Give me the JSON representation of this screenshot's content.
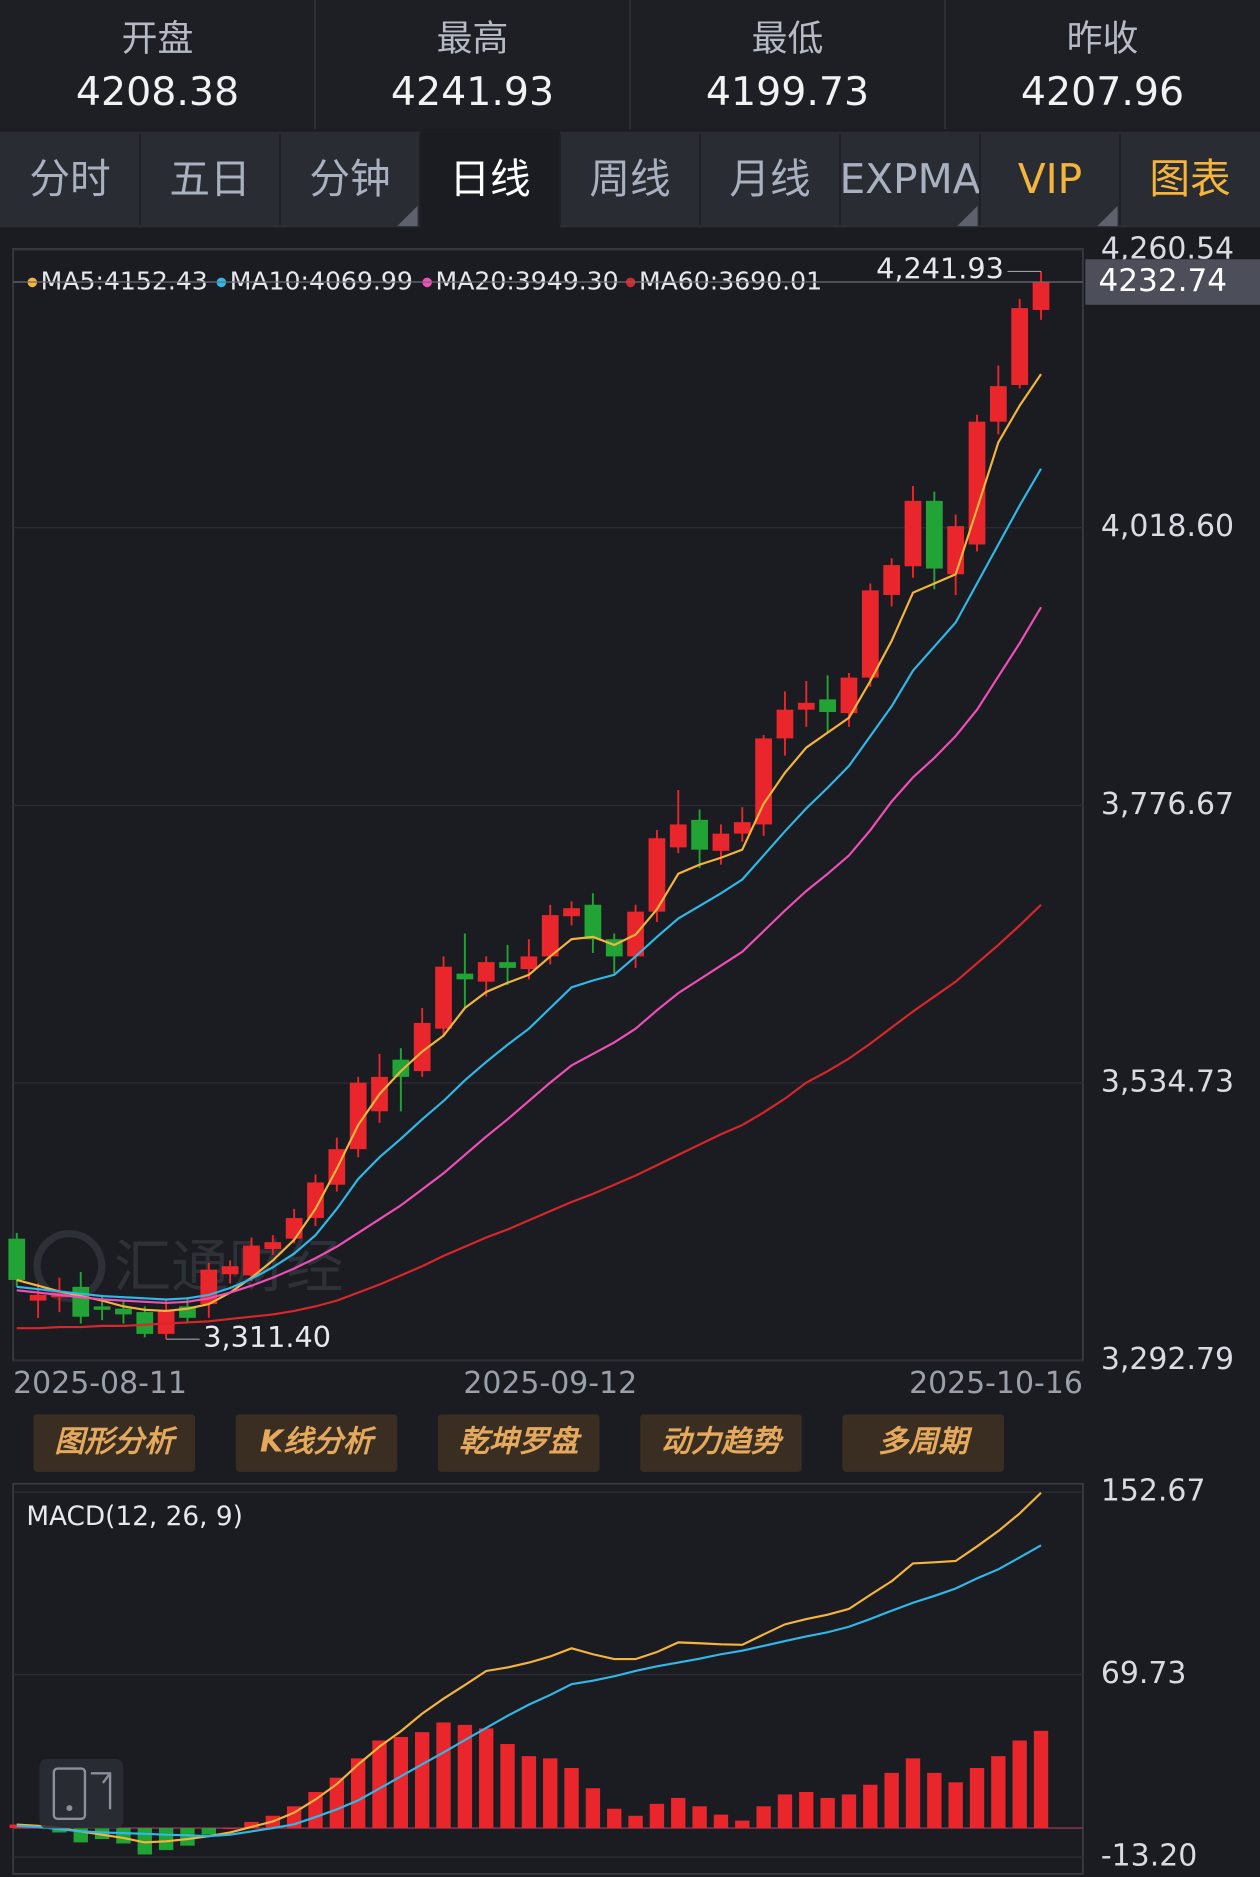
{
  "header": {
    "stats": [
      {
        "label": "开盘",
        "value": 4208.38
      },
      {
        "label": "最高",
        "value": 4241.93
      },
      {
        "label": "最低",
        "value": 4199.73
      },
      {
        "label": "昨收",
        "value": 4207.96
      }
    ]
  },
  "tabs": {
    "items": [
      {
        "label": "分时"
      },
      {
        "label": "五日"
      },
      {
        "label": "分钟",
        "menu": true
      },
      {
        "label": "日线",
        "active": true
      },
      {
        "label": "周线"
      },
      {
        "label": "月线"
      },
      {
        "label": "EXPMA",
        "menu": true
      },
      {
        "label": "VIP",
        "color": "#f5b53d",
        "menu": true
      },
      {
        "label": "图表",
        "color": "#f5b53d"
      }
    ]
  },
  "buttons": [
    "图形分析",
    "K线分析",
    "乾坤罗盘",
    "动力趋势",
    "多周期"
  ],
  "chart_data": [
    {
      "type": "candlestick",
      "categories": [
        "2025-08-11",
        null,
        null,
        null,
        null,
        null,
        null,
        null,
        null,
        null,
        null,
        null,
        null,
        null,
        null,
        null,
        null,
        null,
        null,
        null,
        null,
        null,
        null,
        null,
        null,
        "2025-09-12",
        null,
        null,
        null,
        null,
        null,
        null,
        null,
        null,
        null,
        null,
        null,
        null,
        null,
        null,
        null,
        null,
        null,
        null,
        null,
        null,
        null,
        null,
        "2025-10-16"
      ],
      "open": [
        3399,
        3345,
        3348,
        3357,
        3340,
        3338,
        3335,
        3316,
        3340,
        3342,
        3368,
        3367,
        3390,
        3399,
        3417,
        3446,
        3477,
        3510,
        3555,
        3545,
        3582,
        3630,
        3623,
        3640,
        3634,
        3645,
        3680,
        3690,
        3660,
        3645,
        3684,
        3740,
        3764,
        3737,
        3752,
        3760,
        3835,
        3860,
        3869,
        3857,
        3888,
        3960,
        3985,
        4042,
        3978,
        4004,
        4111,
        4143,
        4208.38
      ],
      "high": [
        3404,
        3360,
        3365,
        3370,
        3350,
        3345,
        3340,
        3345,
        3348,
        3378,
        3380,
        3400,
        3402,
        3425,
        3455,
        3487,
        3540,
        3560,
        3565,
        3600,
        3645,
        3665,
        3645,
        3655,
        3660,
        3690,
        3693,
        3700,
        3665,
        3690,
        3755,
        3790,
        3773,
        3760,
        3775,
        3838,
        3876,
        3885,
        3890,
        3892,
        3970,
        3992,
        4055,
        4050,
        4030,
        4117,
        4160,
        4218,
        4241.93
      ],
      "low": [
        3357,
        3330,
        3335,
        3325,
        3328,
        3325,
        3313,
        3311.4,
        3325,
        3330,
        3360,
        3362,
        3385,
        3395,
        3410,
        3440,
        3470,
        3500,
        3510,
        3540,
        3575,
        3600,
        3610,
        3620,
        3625,
        3638,
        3672,
        3648,
        3630,
        3635,
        3675,
        3735,
        3722,
        3725,
        3745,
        3750,
        3820,
        3845,
        3840,
        3845,
        3880,
        3950,
        3975,
        3965,
        3960,
        3998,
        4100,
        4140,
        4199.73
      ],
      "close": [
        3363,
        3350,
        3352,
        3331,
        3337,
        3333,
        3316,
        3337,
        3330,
        3372,
        3375,
        3393,
        3396,
        3417,
        3448,
        3477,
        3535,
        3540,
        3540,
        3587,
        3636,
        3625,
        3640,
        3635,
        3645,
        3681,
        3687,
        3660,
        3645,
        3684,
        3748,
        3760,
        3738,
        3752,
        3762,
        3835,
        3860,
        3866,
        3858,
        3888,
        3964,
        3986,
        4042,
        3983,
        4020,
        4111,
        4142,
        4210,
        4232.74
      ],
      "up_color": "#e8262b",
      "down_color": "#22a336",
      "series": [
        {
          "name": "MA5:4152.43",
          "color": "#f5b53d",
          "values": [
            3363,
            3358,
            3353,
            3349,
            3345,
            3340,
            3337,
            3336,
            3338,
            3342,
            3352,
            3365,
            3380,
            3398,
            3425,
            3460,
            3498,
            3525,
            3545,
            3562,
            3576,
            3600,
            3614,
            3622,
            3629,
            3645,
            3660,
            3662,
            3655,
            3664,
            3686,
            3717,
            3725,
            3731,
            3738,
            3778,
            3805,
            3827,
            3840,
            3853,
            3885,
            3920,
            3962,
            3970,
            3978,
            4035,
            4093,
            4125,
            4152.43
          ]
        },
        {
          "name": "MA10:4069.99",
          "color": "#2fb8e8",
          "values": [
            3357,
            3355,
            3353,
            3351,
            3349,
            3348,
            3347,
            3346,
            3347,
            3350,
            3356,
            3364,
            3374,
            3386,
            3402,
            3425,
            3451,
            3470,
            3486,
            3503,
            3519,
            3537,
            3553,
            3568,
            3582,
            3600,
            3618,
            3624,
            3629,
            3645,
            3662,
            3678,
            3689,
            3700,
            3712,
            3733,
            3754,
            3774,
            3792,
            3811,
            3837,
            3863,
            3894,
            3915,
            3936,
            3970,
            4004,
            4038,
            4069.99
          ]
        },
        {
          "name": "MA20:3949.30",
          "color": "#f04fb8",
          "values": [
            3354,
            3352,
            3350,
            3348,
            3346,
            3345,
            3344,
            3343,
            3344,
            3347,
            3352,
            3358,
            3365,
            3373,
            3382,
            3392,
            3404,
            3416,
            3428,
            3442,
            3456,
            3472,
            3488,
            3503,
            3519,
            3535,
            3550,
            3560,
            3570,
            3582,
            3598,
            3613,
            3625,
            3637,
            3649,
            3667,
            3685,
            3702,
            3717,
            3733,
            3755,
            3780,
            3801,
            3818,
            3837,
            3860,
            3889,
            3918,
            3949.3
          ]
        },
        {
          "name": "MA60:3690.01",
          "color": "#d9262b",
          "values": [
            3321,
            3321,
            3322,
            3322,
            3323,
            3323,
            3324,
            3325,
            3326,
            3327,
            3329,
            3331,
            3333,
            3336,
            3340,
            3345,
            3352,
            3359,
            3367,
            3375,
            3384,
            3392,
            3400,
            3407,
            3415,
            3423,
            3431,
            3438,
            3446,
            3454,
            3463,
            3472,
            3481,
            3490,
            3498,
            3509,
            3521,
            3535,
            3545,
            3556,
            3569,
            3583,
            3597,
            3610,
            3623,
            3639,
            3655,
            3672,
            3690.01
          ]
        }
      ],
      "ylim": [
        3292.79,
        4260.54
      ],
      "yticks": [
        {
          "value": 3292.79,
          "label": "3,292.79"
        },
        {
          "value": 3534.73,
          "label": "3,534.73"
        },
        {
          "value": 3776.67,
          "label": "3,776.67"
        },
        {
          "value": 4018.6,
          "label": "4,018.60"
        },
        {
          "value": 4260.54,
          "label": "4,260.54"
        }
      ],
      "annotations": [
        {
          "label": "4,241.93",
          "value": 4241.93
        },
        {
          "label": "3,311.40",
          "value": 3311.4
        }
      ],
      "last_price": {
        "label": "4232.74",
        "value": 4232.74
      },
      "watermark": "汇通财经",
      "grid": true
    },
    {
      "type": "macd",
      "title": "MACD(12, 26, 9)",
      "ylim": [
        -13.2,
        152.67
      ],
      "yticks": [
        {
          "value": -13.2,
          "label": "-13.20"
        },
        69.73,
        152.67
      ],
      "histogram": {
        "values": [
          1.6,
          1,
          -2,
          -6.5,
          -5,
          -7,
          -12,
          -10,
          -8,
          -3,
          0.1,
          2.8,
          5.6,
          9.9,
          16.4,
          22.9,
          31.7,
          39.8,
          41.4,
          43.6,
          48,
          46.9,
          45.3,
          38.2,
          32.7,
          31.7,
          27.3,
          18.1,
          8.8,
          5.6,
          11,
          13.7,
          9.9,
          6.1,
          3.4,
          9.9,
          15.3,
          16.4,
          13.7,
          15.3,
          19.7,
          25.1,
          31.7,
          25.1,
          20.8,
          27.3,
          32.7,
          39.8,
          44.2
        ],
        "up_color": "#e8262b",
        "down_color": "#22a336"
      },
      "lines": [
        {
          "color": "#f5b53d",
          "values": [
            1.6,
            1,
            0,
            -1.5,
            -3,
            -4.5,
            -6.5,
            -6,
            -5,
            -3.7,
            -2,
            0.5,
            3,
            7,
            13,
            20,
            28.9,
            37,
            44,
            52,
            58.8,
            65,
            71.4,
            73,
            75.2,
            78,
            81.7,
            79,
            76.8,
            76.8,
            80,
            84.4,
            84,
            83.5,
            83.3,
            88,
            92.6,
            95,
            97,
            99.6,
            106,
            112.2,
            120.3,
            120.8,
            121.4,
            128,
            135,
            143,
            152.4
          ]
        },
        {
          "color": "#2fb8e8",
          "values": [
            1,
            0.5,
            -0.5,
            -1.5,
            -2,
            -2.3,
            -2.6,
            -3,
            -3.3,
            -3.7,
            -3,
            -1.5,
            0,
            1.7,
            5,
            8.5,
            12.6,
            18,
            23.5,
            29,
            34.4,
            40,
            45.5,
            51,
            56.1,
            60.5,
            65.4,
            67,
            69,
            71.4,
            73.5,
            75.2,
            77,
            79,
            80.6,
            82.8,
            85,
            87.1,
            89,
            91.5,
            95,
            98.8,
            102.4,
            105.5,
            108.9,
            113.5,
            117.6,
            123,
            128.5
          ]
        }
      ],
      "grid": true
    }
  ]
}
